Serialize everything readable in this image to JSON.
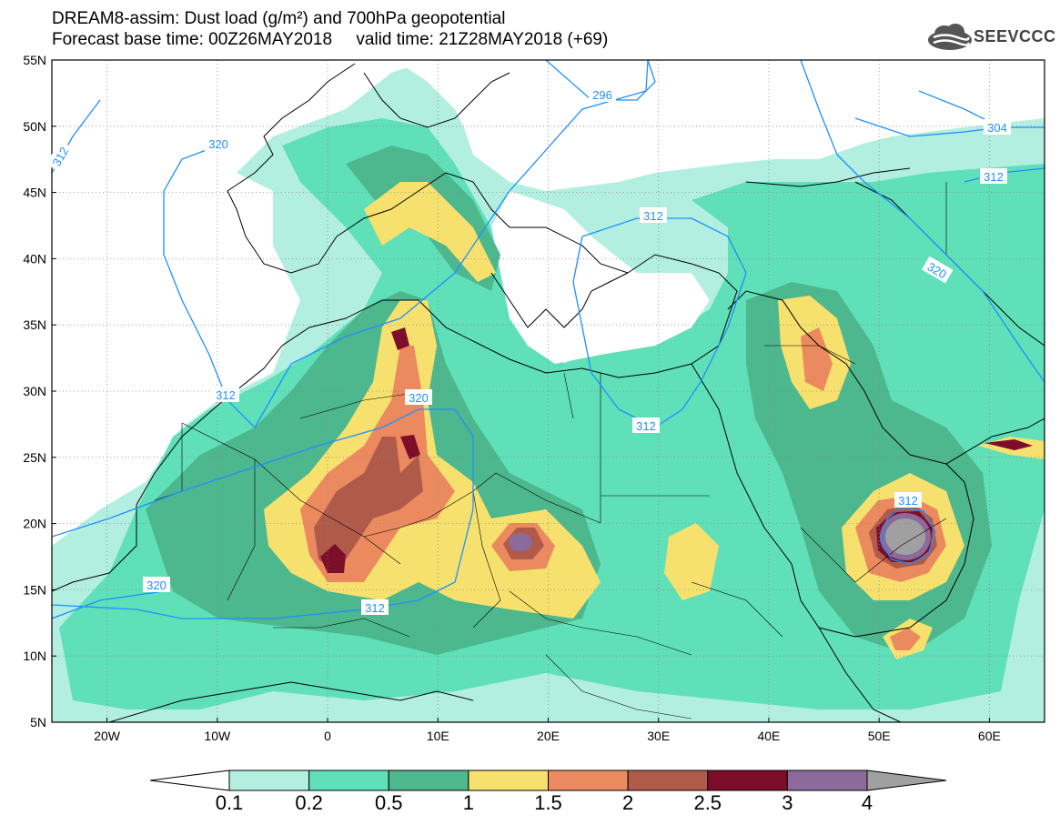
{
  "header": {
    "line1": "DREAM8-assim: Dust load (g/m²) and 700hPa geopotential",
    "line2": "Forecast base time: 00Z26MAY2018     valid time: 21Z28MAY2018 (+69)"
  },
  "logo": {
    "text": "SEEVCCC",
    "icon": "cloud-logo-icon"
  },
  "axes": {
    "lat_labels": [
      "55N",
      "50N",
      "45N",
      "40N",
      "35N",
      "30N",
      "25N",
      "20N",
      "15N",
      "10N",
      "5N"
    ],
    "lon_labels": [
      "20W",
      "10W",
      "0",
      "10E",
      "20E",
      "30E",
      "40E",
      "50E",
      "60E"
    ],
    "lat_range": [
      5,
      55
    ],
    "lon_range": [
      -25,
      65
    ],
    "grid": "dotted"
  },
  "contours": {
    "labels": [
      "312",
      "320",
      "296",
      "304",
      "312",
      "312",
      "320",
      "320",
      "312",
      "312",
      "312",
      "320",
      "312"
    ]
  },
  "colorbar": {
    "labels": [
      "0.1",
      "0.2",
      "0.5",
      "1",
      "1.5",
      "2",
      "2.5",
      "3",
      "4"
    ],
    "colors": [
      "#ffffff",
      "#b3efe1",
      "#5fe0b8",
      "#4db78e",
      "#f7e16e",
      "#ec8a5f",
      "#b05a4a",
      "#7d0e2a",
      "#8c6a9b",
      "#a0a0a0"
    ]
  },
  "palette": {
    "c1": "#b3efe1",
    "c2": "#5fe0b8",
    "c3": "#4db78e",
    "c4": "#f7e16e",
    "c5": "#ec8a5f",
    "c6": "#b05a4a",
    "c7": "#7d0e2a",
    "c8": "#8c6a9b",
    "c9": "#a0a0a0",
    "contour": "#1e90ff"
  }
}
